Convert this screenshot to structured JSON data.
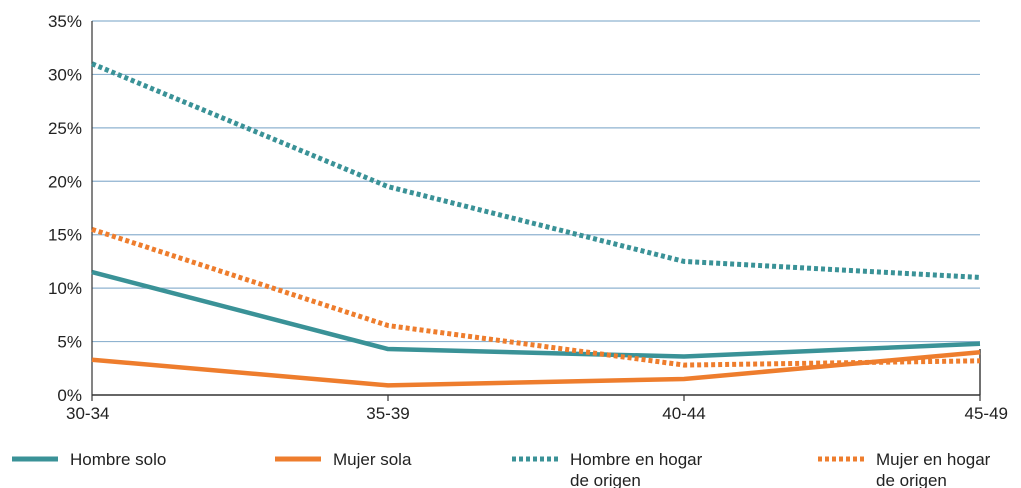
{
  "chart_data": {
    "type": "line",
    "categories": [
      "30-34",
      "35-39",
      "40-44",
      "45-49"
    ],
    "ylim": [
      0,
      35
    ],
    "yticks": [
      "0%",
      "5%",
      "10%",
      "15%",
      "20%",
      "25%",
      "30%",
      "35%"
    ],
    "ytick_values": [
      0,
      5,
      10,
      15,
      20,
      25,
      30,
      35
    ],
    "grid": true,
    "legend_position": "bottom",
    "series": [
      {
        "name": "Hombre solo",
        "values": [
          11.5,
          4.3,
          3.6,
          4.8
        ],
        "color": "#3a9297",
        "style": "solid"
      },
      {
        "name": "Mujer sola",
        "values": [
          3.3,
          0.9,
          1.5,
          4.0
        ],
        "color": "#ee7d2d",
        "style": "solid"
      },
      {
        "name_lines": [
          "Hombre en hogar",
          "de origen"
        ],
        "values": [
          31.0,
          19.5,
          12.5,
          11.0
        ],
        "color": "#3a9297",
        "style": "dotted"
      },
      {
        "name_lines": [
          "Mujer en hogar",
          "de origen"
        ],
        "values": [
          15.5,
          6.5,
          2.8,
          3.2
        ],
        "color": "#ee7d2d",
        "style": "dotted"
      }
    ]
  },
  "colors": {
    "grid": "#8fb3d0",
    "axis": "#333333"
  }
}
